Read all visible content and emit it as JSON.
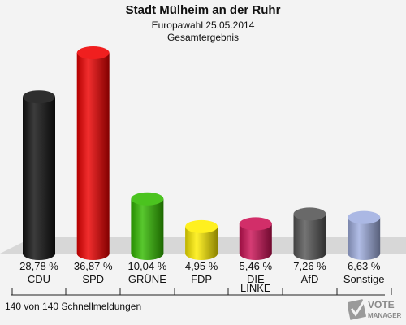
{
  "header": {
    "title": "Stadt Mülheim an der Ruhr",
    "subtitle1": "Europawahl 25.05.2014",
    "subtitle2": "Gesamtergebnis"
  },
  "footer": "140 von 140 Schnellmeldungen",
  "logo": {
    "line1": "VOTE",
    "line2": "MANAGER",
    "icon": "ballot-check-icon"
  },
  "chart_data": {
    "type": "bar",
    "title": "Stadt Mülheim an der Ruhr",
    "subtitle": "Europawahl 25.05.2014 · Gesamtergebnis",
    "categories": [
      "CDU",
      "SPD",
      "GRÜNE",
      "FDP",
      "DIE LINKE",
      "AfD",
      "Sonstige"
    ],
    "category_lines": [
      [
        "CDU"
      ],
      [
        "SPD"
      ],
      [
        "GRÜNE"
      ],
      [
        "FDP"
      ],
      [
        "DIE",
        "LINKE"
      ],
      [
        "AfD"
      ],
      [
        "Sonstige"
      ]
    ],
    "values": [
      28.78,
      36.87,
      10.04,
      4.95,
      5.46,
      7.26,
      6.63
    ],
    "value_labels": [
      "28,78 %",
      "36,87 %",
      "10,04 %",
      "4,95 %",
      "5,46 %",
      "7,26 %",
      "6,63 %"
    ],
    "colors": [
      "#111111",
      "#ee0000",
      "#33bb00",
      "#ffee00",
      "#cc1155",
      "#555555",
      "#a0aee0"
    ],
    "ylim": [
      0,
      36.87
    ]
  }
}
